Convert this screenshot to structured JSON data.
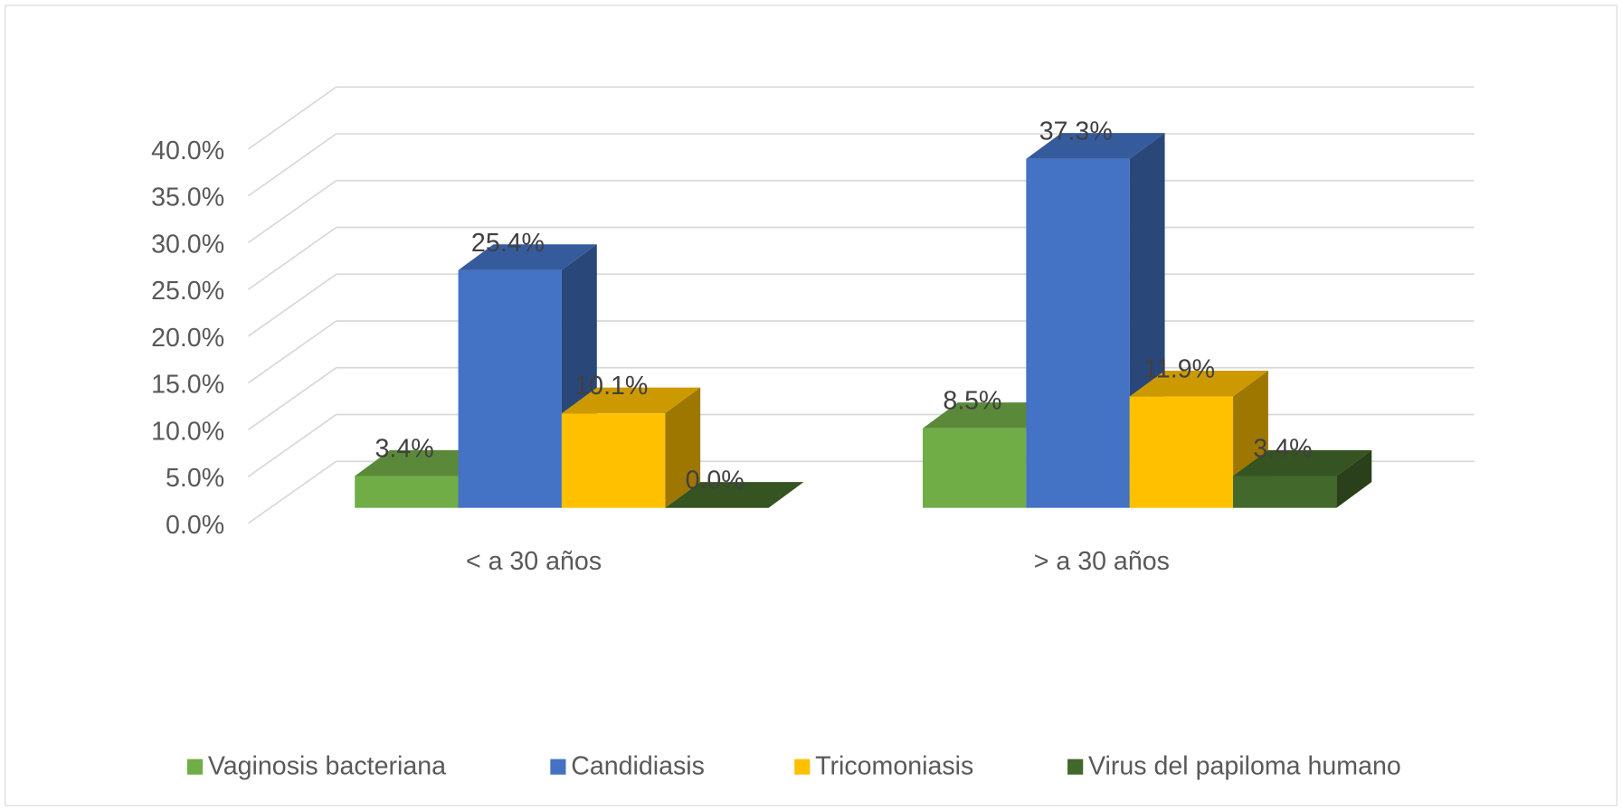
{
  "chart_data": {
    "type": "bar3d",
    "categories": [
      "< a 30 años",
      "> a 30 años"
    ],
    "series": [
      {
        "name": "Vaginosis bacteriana",
        "color": "#70ad47",
        "values": [
          3.4,
          8.5
        ],
        "value_labels": [
          "3.4%",
          "8.5%"
        ]
      },
      {
        "name": "Candidiasis",
        "color": "#4472c4",
        "values": [
          25.4,
          37.3
        ],
        "value_labels": [
          "25.4%",
          "37.3%"
        ]
      },
      {
        "name": "Tricomoniasis",
        "color": "#ffc000",
        "values": [
          10.1,
          11.9
        ],
        "value_labels": [
          "10.1%",
          "11.9%"
        ]
      },
      {
        "name": "Virus del papiloma humano",
        "color": "#43682b",
        "values": [
          0.0,
          3.4
        ],
        "value_labels": [
          "0.0%",
          "3.4%"
        ]
      }
    ],
    "ylim": [
      0,
      40
    ],
    "yticks": [
      {
        "value": 0,
        "label": "0.0%"
      },
      {
        "value": 5,
        "label": "5.0%"
      },
      {
        "value": 10,
        "label": "10.0%"
      },
      {
        "value": 15,
        "label": "15.0%"
      },
      {
        "value": 20,
        "label": "20.0%"
      },
      {
        "value": 25,
        "label": "25.0%"
      },
      {
        "value": 30,
        "label": "30.0%"
      },
      {
        "value": 35,
        "label": "35.0%"
      },
      {
        "value": 40,
        "label": "40.0%"
      }
    ],
    "grid": true,
    "legend": "bottom"
  }
}
